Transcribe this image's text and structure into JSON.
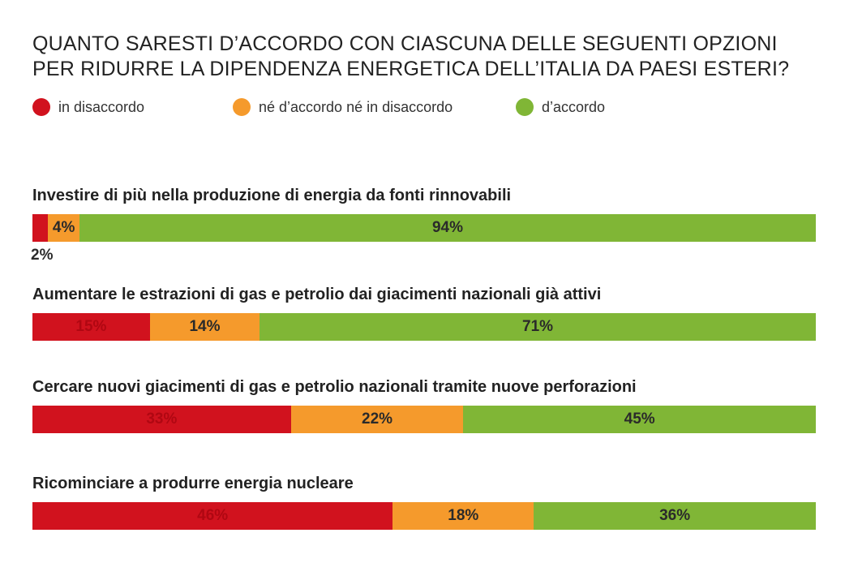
{
  "title_lines": [
    "QUANTO SARESTI D’ACCORDO CON CIASCUNA DELLE SEGUENTI OPZIONI",
    "PER RIDURRE LA DIPENDENZA ENERGETICA DELL’ITALIA DA PAESI ESTERI?"
  ],
  "colors": {
    "disagree": "#d1121e",
    "neutral": "#f59a2c",
    "agree": "#80b636",
    "label_dark": "#2a2a2a",
    "label_on_red": "#b00712"
  },
  "chart_data": {
    "type": "bar",
    "stacked": true,
    "orientation": "horizontal",
    "percent": true,
    "legend_position": "top-left",
    "series": [
      {
        "name": "in disaccordo",
        "color": "#d1121e",
        "values": [
          2,
          15,
          33,
          46
        ]
      },
      {
        "name": "né d’accordo né in disaccordo",
        "color": "#f59a2c",
        "values": [
          4,
          14,
          22,
          18
        ]
      },
      {
        "name": "d’accordo",
        "color": "#80b636",
        "values": [
          94,
          71,
          45,
          36
        ]
      }
    ],
    "categories": [
      "Investire di più nella produzione di energia da fonti rinnovabili",
      "Aumentare le estrazioni di gas e petrolio dai giacimenti nazionali già attivi",
      "Cercare nuovi giacimenti di gas e petrolio nazionali tramite nuove perforazioni",
      "Ricominciare a produrre energia nucleare"
    ],
    "data_labels": [
      [
        "2%",
        "4%",
        "94%"
      ],
      [
        "15%",
        "14%",
        "71%"
      ],
      [
        "33%",
        "22%",
        "45%"
      ],
      [
        "46%",
        "18%",
        "36%"
      ]
    ]
  }
}
